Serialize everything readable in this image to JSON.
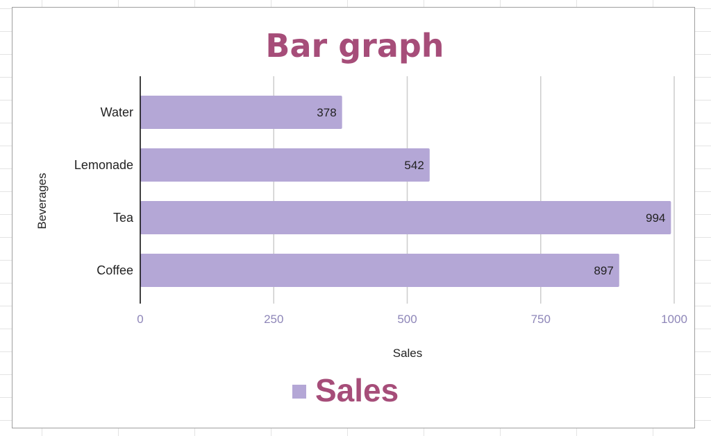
{
  "chart_data": {
    "type": "bar",
    "orientation": "horizontal",
    "title": "Bar graph",
    "xlabel": "Sales",
    "ylabel": "Beverages",
    "categories": [
      "Water",
      "Lemonade",
      "Tea",
      "Coffee"
    ],
    "series": [
      {
        "name": "Sales",
        "values": [
          378,
          542,
          994,
          897
        ]
      }
    ],
    "xlim": [
      0,
      1000
    ],
    "xticks": [
      "0",
      "250",
      "500",
      "750",
      "1000"
    ],
    "grid": true,
    "legend": "bottom"
  },
  "colors": {
    "bar": "#b4a7d6",
    "title": "#a64d79",
    "tick": "#8e86b8",
    "grid": "#cccccc",
    "axis": "#000000"
  }
}
